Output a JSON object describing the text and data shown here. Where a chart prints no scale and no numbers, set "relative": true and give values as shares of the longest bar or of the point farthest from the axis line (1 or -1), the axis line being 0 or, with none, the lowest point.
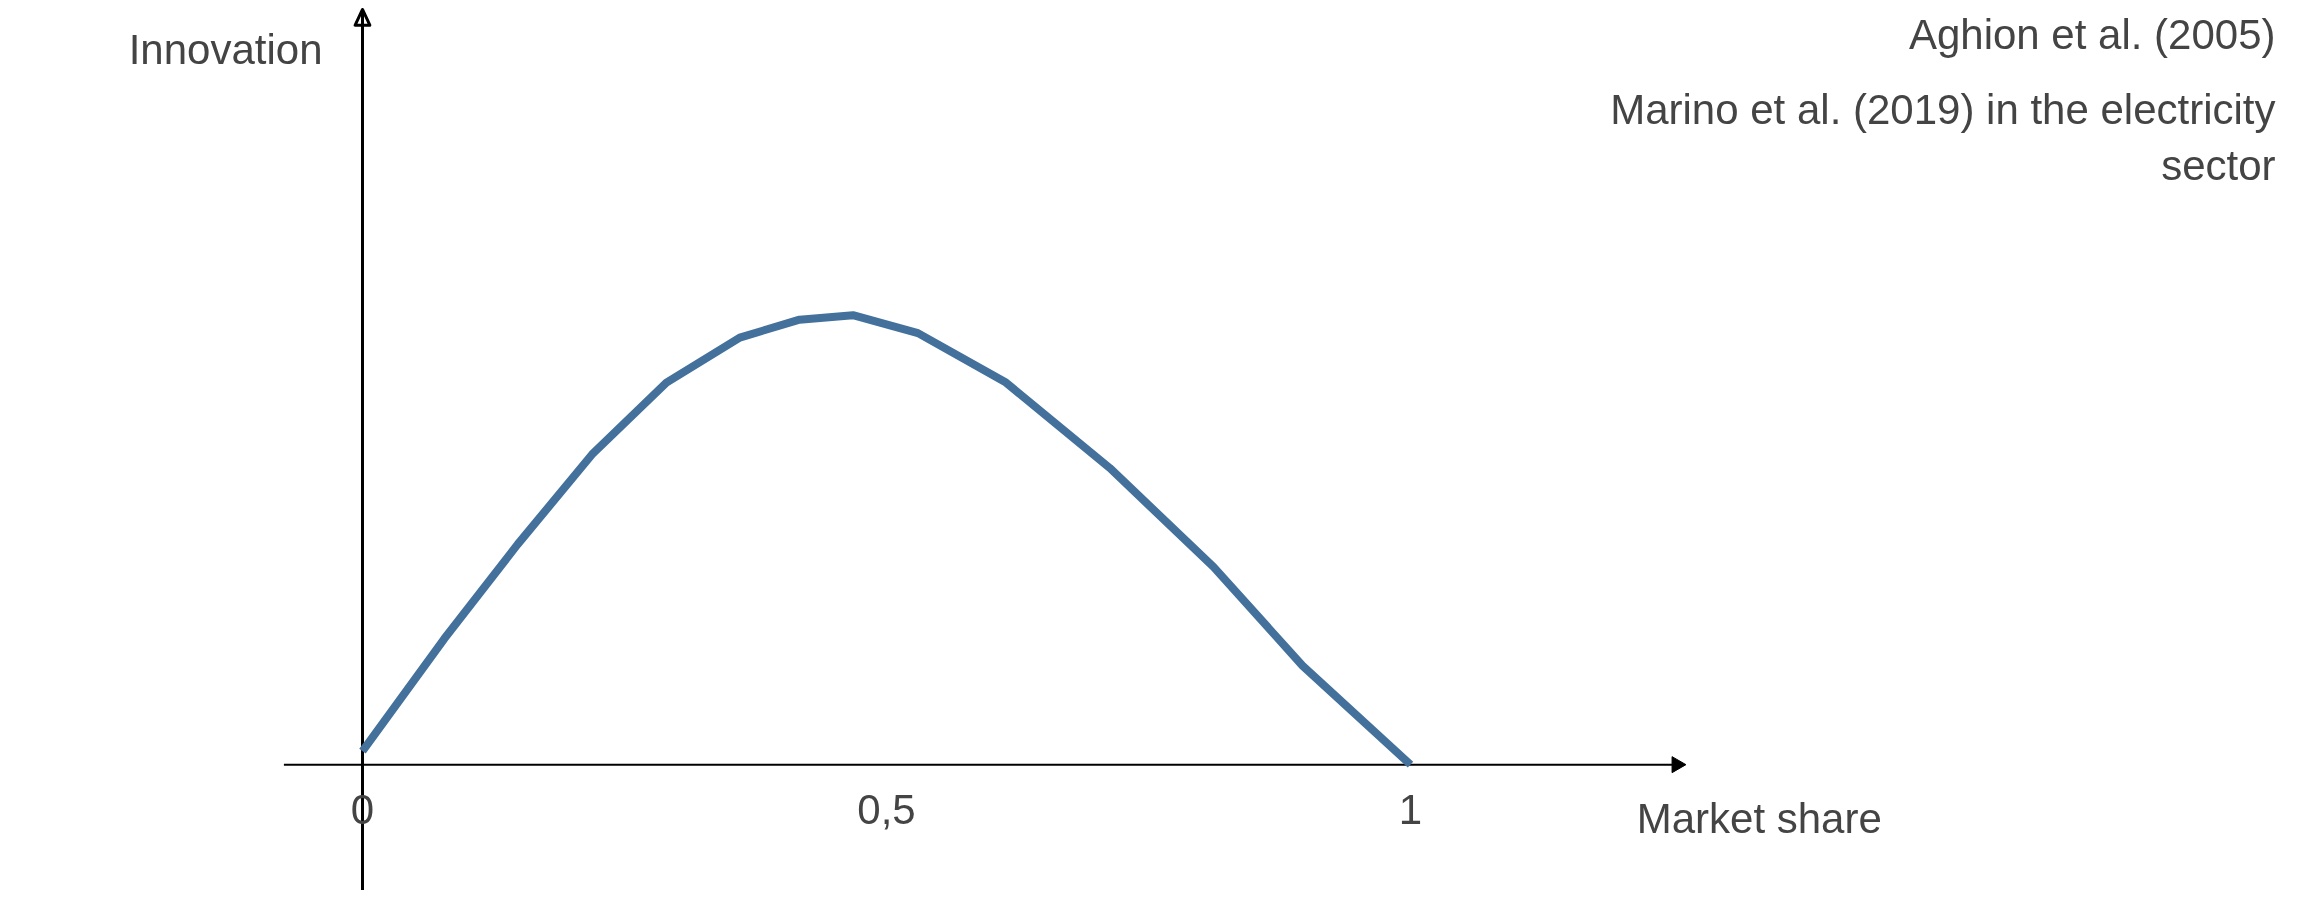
{
  "chart_data": {
    "type": "line",
    "relative": true,
    "xlabel": "Market share",
    "x": [
      0,
      0.078,
      0.148,
      0.219,
      0.29,
      0.36,
      0.417,
      0.468,
      0.53,
      0.614,
      0.713,
      0.812,
      0.897,
      1.0
    ],
    "series": [
      {
        "color": "#44719c",
        "values": [
          0.03,
          0.28,
          0.49,
          0.69,
          0.85,
          0.95,
          0.99,
          1.0,
          0.96,
          0.85,
          0.66,
          0.44,
          0.22,
          0
        ]
      }
    ],
    "xlim": [
      -0.075,
      1.254
    ],
    "xticks": [
      0,
      {
        "value": 0.5,
        "label": "0,5"
      },
      1
    ],
    "tick_labels": "x",
    "marker": "none",
    "line_style": "solid",
    "annotations": [
      "Innovation",
      "Aghion et al. (2005)",
      "Marino et al. (2019) in the electricity\nsector"
    ]
  }
}
